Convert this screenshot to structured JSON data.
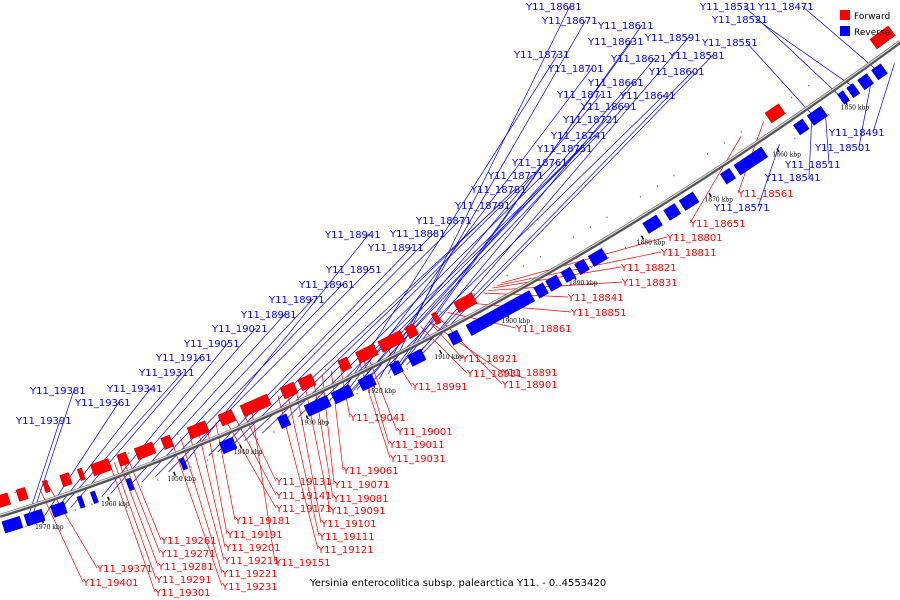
{
  "legend": {
    "forward": {
      "label": "Forward",
      "color": "#ff0000"
    },
    "reverse": {
      "label": "Reverse",
      "color": "#0000ff"
    }
  },
  "caption": "Yersinia enterocolitica subsp. palearctica Y11. - 0..4553420",
  "ticks": [
    "1850 kbp",
    "1860 kbp",
    "1870 kbp",
    "1880 kbp",
    "1890 kbp",
    "1900 kbp",
    "1910 kbp",
    "1920 kbp",
    "1930 kbp",
    "1940 kbp",
    "1950 kbp",
    "1960 kbp",
    "1970 kbp"
  ],
  "reverse_genes": [
    "Y11_18681",
    "Y11_18671",
    "Y11_18611",
    "Y11_18631",
    "Y11_18591",
    "Y11_18621",
    "Y11_18581",
    "Y11_18601",
    "Y11_18731",
    "Y11_18701",
    "Y11_18661",
    "Y11_18711",
    "Y11_18641",
    "Y11_18691",
    "Y11_18721",
    "Y11_18741",
    "Y11_18751",
    "Y11_18761",
    "Y11_18771",
    "Y11_18781",
    "Y11_18791",
    "Y11_18871",
    "Y11_18881",
    "Y11_18941",
    "Y11_18911",
    "Y11_18951",
    "Y11_18961",
    "Y11_18971",
    "Y11_18981",
    "Y11_19021",
    "Y11_19051",
    "Y11_19161",
    "Y11_19311",
    "Y11_19381",
    "Y11_19341",
    "Y11_19361",
    "Y11_19391",
    "Y11_18531",
    "Y11_18471",
    "Y11_18521",
    "Y11_18551",
    "Y11_18491",
    "Y11_18501",
    "Y11_18511",
    "Y11_18541",
    "Y11_18571"
  ],
  "forward_genes": [
    "Y11_18561",
    "Y11_18651",
    "Y11_18801",
    "Y11_18811",
    "Y11_18821",
    "Y11_18831",
    "Y11_18841",
    "Y11_18851",
    "Y11_18861",
    "Y11_18921",
    "Y11_18931",
    "Y11_18891",
    "Y11_18901",
    "Y11_18991",
    "Y11_19041",
    "Y11_19001",
    "Y11_19011",
    "Y11_19031",
    "Y11_19061",
    "Y11_19071",
    "Y11_19081",
    "Y11_19091",
    "Y11_19131",
    "Y11_19141",
    "Y11_19171",
    "Y11_19101",
    "Y11_19111",
    "Y11_19121",
    "Y11_19151",
    "Y11_19181",
    "Y11_19191",
    "Y11_19201",
    "Y11_19211",
    "Y11_19221",
    "Y11_19231",
    "Y11_19261",
    "Y11_19271",
    "Y11_19281",
    "Y11_19291",
    "Y11_19301",
    "Y11_19371",
    "Y11_19401"
  ]
}
